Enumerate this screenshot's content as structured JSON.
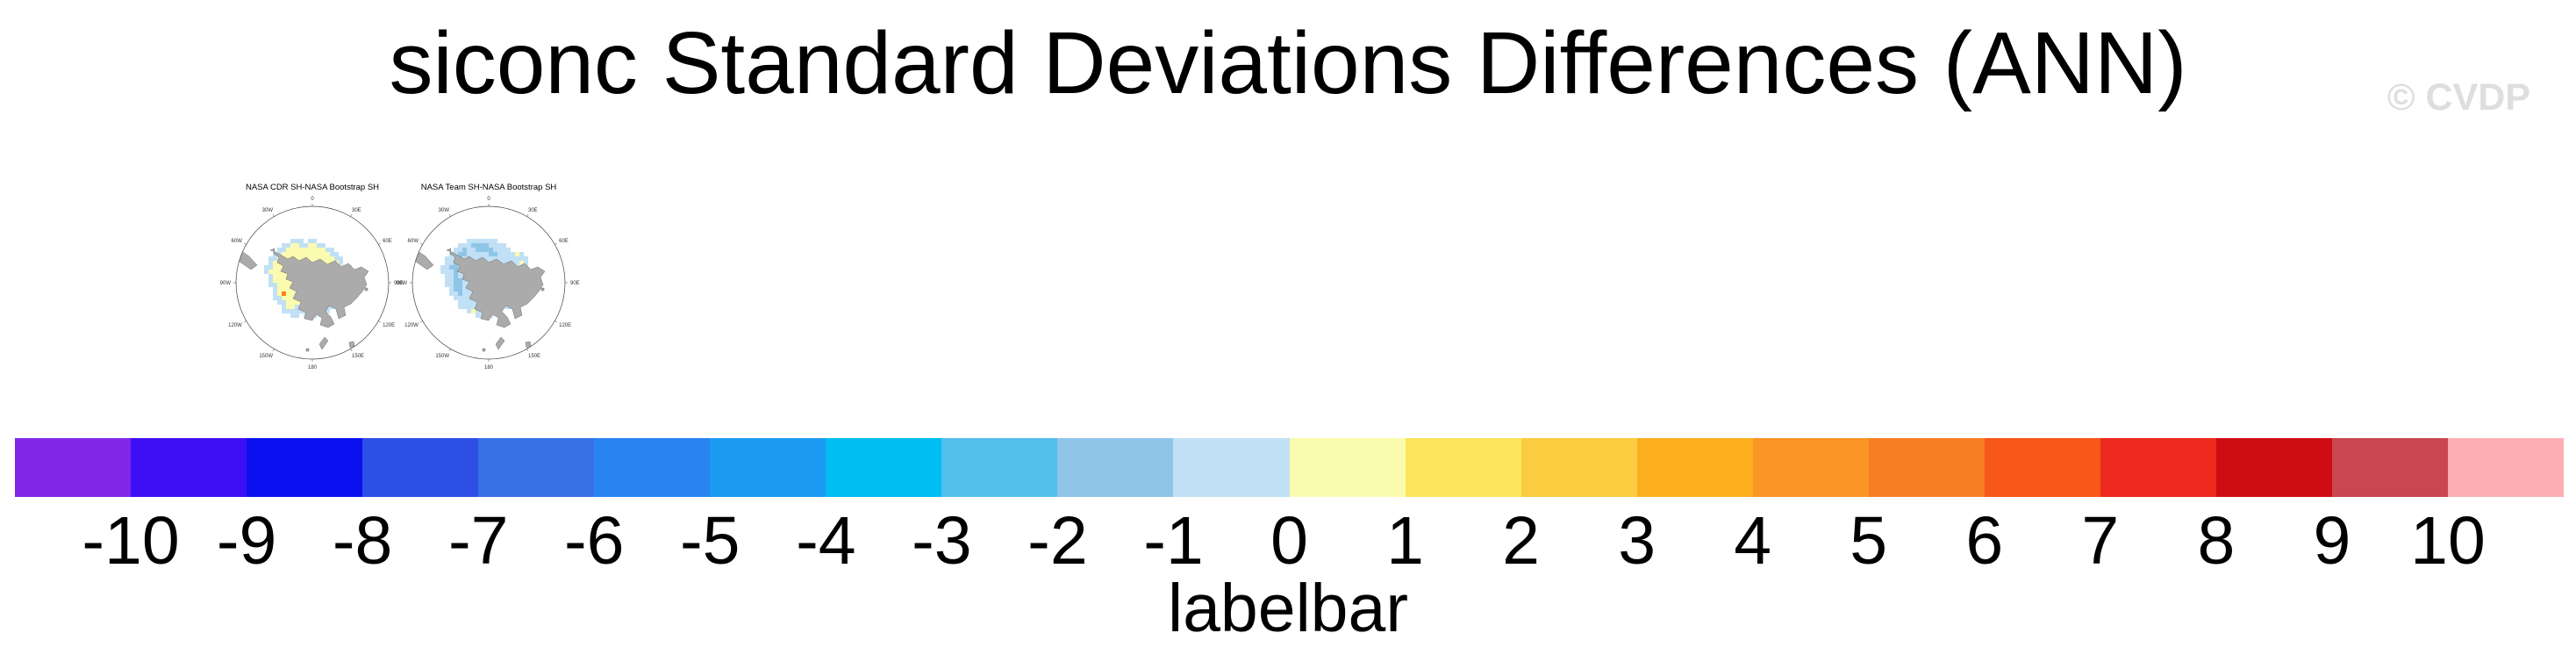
{
  "header": {
    "title": "siconc Standard Deviations Differences (ANN)",
    "watermark": "© CVDP"
  },
  "maps": {
    "longitude_labels": [
      "0",
      "30E",
      "60E",
      "90E",
      "120E",
      "150E",
      "180",
      "150W",
      "120W",
      "90W",
      "60W",
      "30W"
    ],
    "cell_legend": {
      "p": "#C1E0F5",
      "b": "#8FC6E8",
      "y": "#FBFBB0",
      "Y": "#FBE45E",
      "g": "#FBCC3F",
      "o": "#F8821F"
    },
    "land_color": "#ABABAB",
    "outline_color": "#555555",
    "items": [
      {
        "title": "NASA CDR SH-NASA Bootstrap SH",
        "grid": [
          "......ppp.pp..........",
          "....ppyyppyypp........",
          "...ppyyyyyyyyypp......",
          "..ppyyyyyyyyyyypp.....",
          ".ppyyyyyyyyyyyyypp....",
          ".pyyyyyyyyyyyyyyyp....",
          "ppyyyyyyyyyyyyyyyypp..",
          "pyyyyyyyyyyyyyyyyyp...",
          ".pyyyyyyyyyyyyyyygp...",
          ".pyyyyyyyyyyyyyyyyp...",
          ".ppyyyyyyyyyyyyyyypp..",
          "..pyyyyyyyyyyyyyyyp...",
          "..pyoyyyyyyyyyyyp.....",
          "..ppyyyyyyyyyygyp.....",
          "...ppyyyyyyyyyypp.....",
          "....pyypyyyypypp......",
          "....ppppppppppp.......",
          "......pp.ppp..........",
          "......................",
          "......................"
        ]
      },
      {
        "title": "NASA Team SH-NASA Bootstrap SH",
        "grid": [
          "......ppppppp.........",
          "....pppbbbbpppp.......",
          "...ppbppbbbbpppp......",
          "..ppbbpppppbbppppyp...",
          ".pppbppppppppppppppp..",
          ".ppbbpyYYpppppppppyp..",
          "ppbbppYYYYpppppppppp..",
          "pppbppyYYypppppppppp..",
          ".ppbpppppppppppppppp..",
          ".ppbbppppppppppppppp..",
          ".ppbbppppppppppppypp..",
          "..pbbppppppppppppppp..",
          "..ppbpppbbppppppppp...",
          "...ppppbbppppppypp....",
          "....ppppppppppyp......",
          "....pppppppppppp......",
          "......pypppppp........",
          "........pp.p..........",
          "......................",
          "......................"
        ]
      }
    ]
  },
  "labelbar": {
    "caption": "labelbar",
    "tick_labels": [
      "-10",
      "-9",
      "-8",
      "-7",
      "-6",
      "-5",
      "-4",
      "-3",
      "-2",
      "-1",
      "0",
      "1",
      "2",
      "3",
      "4",
      "5",
      "6",
      "7",
      "8",
      "9",
      "10"
    ],
    "colors": [
      "#8226E8",
      "#3E0FF5",
      "#0B10F0",
      "#2E4FE6",
      "#3870E6",
      "#2884F0",
      "#1D9BF2",
      "#00BEF2",
      "#54BEEC",
      "#8FC6E8",
      "#C1E0F5",
      "#FBFBB0",
      "#FBE45E",
      "#FBCC3F",
      "#FCAE1E",
      "#FB9526",
      "#F87E22",
      "#F8571A",
      "#EE291E",
      "#CE0C14",
      "#C84750",
      "#FBAFB2"
    ]
  },
  "chart_data": {
    "type": "heatmap",
    "title": "siconc Standard Deviations Differences (ANN)",
    "watermark": "© CVDP",
    "panels": [
      {
        "title": "NASA CDR SH-NASA Bootstrap SH",
        "projection": "south-polar-stereographic",
        "summary": "ring of weak positive differences (0 to 1) adjacent to Antarctica surrounded by weak negative differences (-1 to 0); one orange cell near 4-5 west of the peninsula"
      },
      {
        "title": "NASA Team SH-NASA Bootstrap SH",
        "projection": "south-polar-stereographic",
        "summary": "mostly weak negative differences (-1 to 0) with bands of -2 to -1 and a small cluster of +1 to 2 west of the peninsula"
      }
    ],
    "longitude_ticks": [
      "0",
      "30E",
      "60E",
      "90E",
      "120E",
      "150E",
      "180",
      "150W",
      "120W",
      "90W",
      "60W",
      "30W"
    ],
    "colorbar": {
      "label": "labelbar",
      "levels": [
        -10,
        -9,
        -8,
        -7,
        -6,
        -5,
        -4,
        -3,
        -2,
        -1,
        0,
        1,
        2,
        3,
        4,
        5,
        6,
        7,
        8,
        9,
        10
      ],
      "colors": [
        "#8226E8",
        "#3E0FF5",
        "#0B10F0",
        "#2E4FE6",
        "#3870E6",
        "#2884F0",
        "#1D9BF2",
        "#00BEF2",
        "#54BEEC",
        "#8FC6E8",
        "#C1E0F5",
        "#FBFBB0",
        "#FBE45E",
        "#FBCC3F",
        "#FCAE1E",
        "#FB9526",
        "#F87E22",
        "#F8571A",
        "#EE291E",
        "#CE0C14",
        "#C84750",
        "#FBAFB2"
      ],
      "orientation": "horizontal"
    }
  }
}
